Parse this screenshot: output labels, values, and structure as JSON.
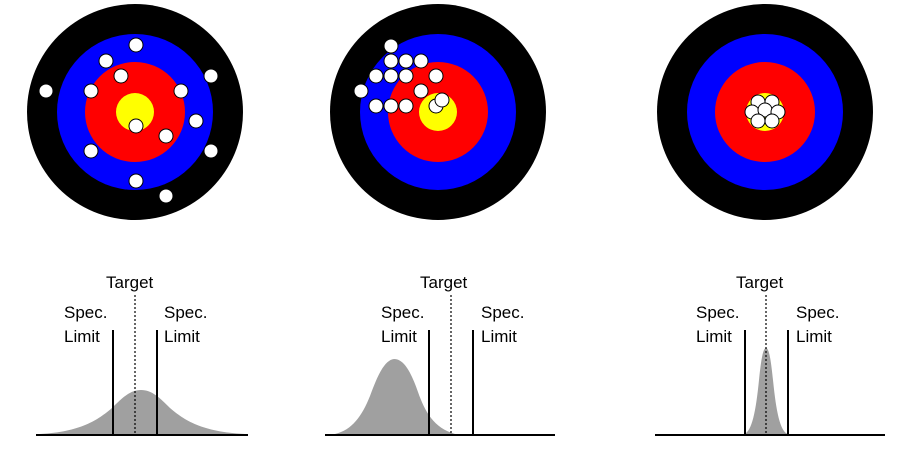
{
  "labels": {
    "target": "Target",
    "spec_line1": "Spec.",
    "spec_line2": "Limit"
  },
  "colors": {
    "ring_outer": "#000000",
    "ring_blue": "#0000ff",
    "ring_red": "#ff0000",
    "bullseye": "#ffff00",
    "shot": "#ffffff",
    "distribution": "#a0a0a0"
  },
  "panels": [
    {
      "id": "scattered",
      "description_shots": "widely scattered around the bullseye",
      "distribution": {
        "mean": 0.0,
        "spread": "wide"
      }
    },
    {
      "id": "offset",
      "description_shots": "tight cluster offset from the bullseye",
      "distribution": {
        "mean": -1.0,
        "spread": "medium"
      }
    },
    {
      "id": "on-target",
      "description_shots": "tight cluster on the bullseye",
      "distribution": {
        "mean": 0.0,
        "spread": "narrow"
      }
    }
  ]
}
